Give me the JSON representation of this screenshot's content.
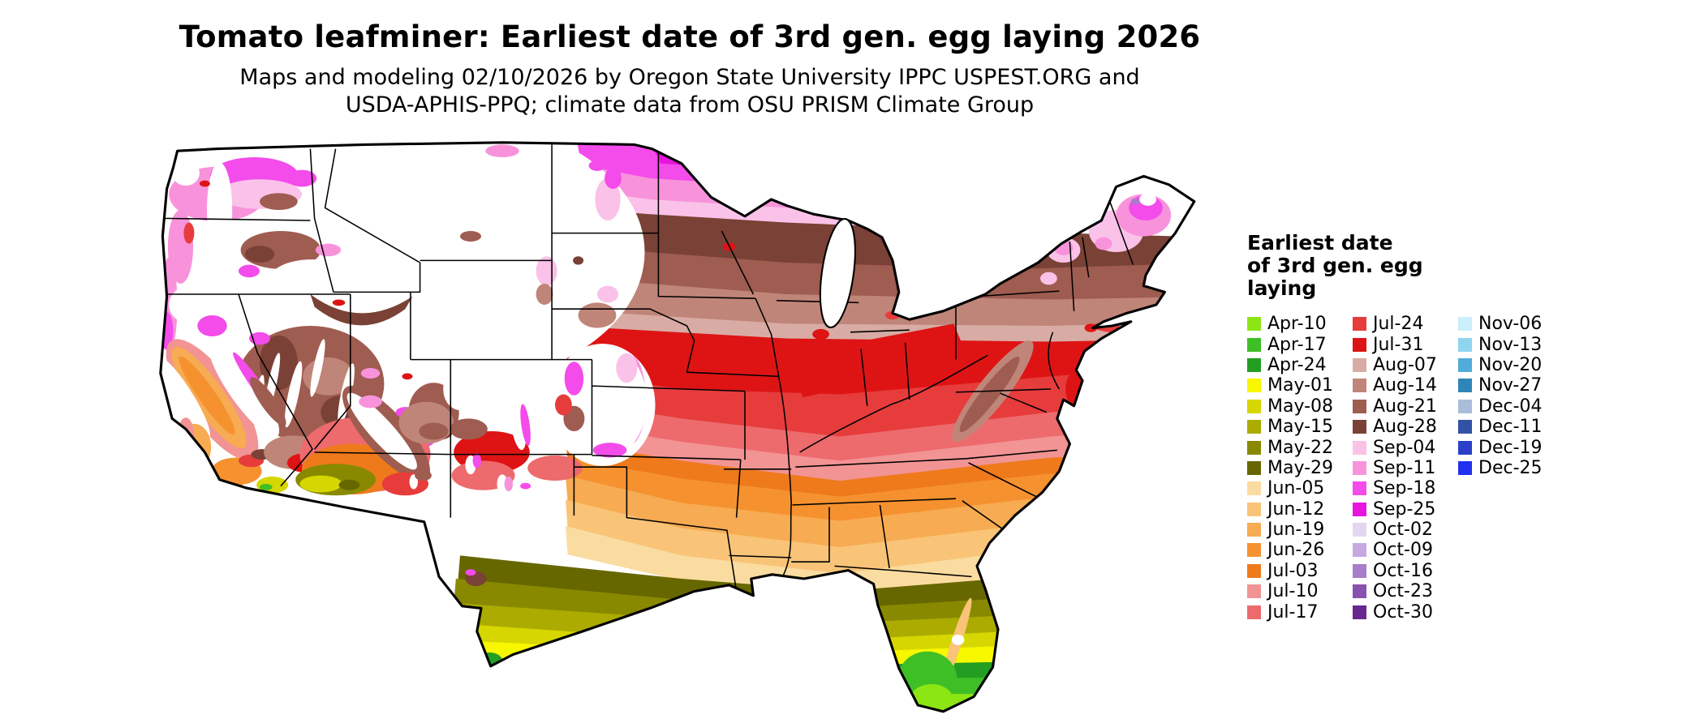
{
  "title": "Tomato leafminer: Earliest date of 3rd gen. egg laying 2026",
  "subtitle_line1": "Maps and modeling 02/10/2026 by Oregon State University IPPC USPEST.ORG and",
  "subtitle_line2": "USDA-APHIS-PPQ; climate data from OSU PRISM Climate Group",
  "legend": {
    "title_lines": [
      "Earliest date",
      "of 3rd gen. egg",
      "laying"
    ],
    "columns": [
      {
        "entries": [
          {
            "label": "Apr-10",
            "color": "#8CE614"
          },
          {
            "label": "Apr-17",
            "color": "#3FBF26"
          },
          {
            "label": "Apr-24",
            "color": "#239E23"
          },
          {
            "label": "May-01",
            "color": "#F7F700"
          },
          {
            "label": "May-08",
            "color": "#D6D600"
          },
          {
            "label": "May-15",
            "color": "#ABAB00"
          },
          {
            "label": "May-22",
            "color": "#898900"
          },
          {
            "label": "May-29",
            "color": "#676700"
          },
          {
            "label": "Jun-05",
            "color": "#FADCA0"
          },
          {
            "label": "Jun-12",
            "color": "#F9C478"
          },
          {
            "label": "Jun-19",
            "color": "#F7AB52"
          },
          {
            "label": "Jun-26",
            "color": "#F5922F"
          },
          {
            "label": "Jul-03",
            "color": "#EE7A1C"
          },
          {
            "label": "Jul-10",
            "color": "#F29394"
          },
          {
            "label": "Jul-17",
            "color": "#ED6A6D"
          }
        ]
      },
      {
        "entries": [
          {
            "label": "Jul-24",
            "color": "#E73C3C"
          },
          {
            "label": "Jul-31",
            "color": "#DE1414"
          },
          {
            "label": "Aug-07",
            "color": "#D8ACA4"
          },
          {
            "label": "Aug-14",
            "color": "#C08579"
          },
          {
            "label": "Aug-21",
            "color": "#9F5C50"
          },
          {
            "label": "Aug-28",
            "color": "#7A4136"
          },
          {
            "label": "Sep-04",
            "color": "#FAC2E8"
          },
          {
            "label": "Sep-11",
            "color": "#F893DB"
          },
          {
            "label": "Sep-18",
            "color": "#F44BEB"
          },
          {
            "label": "Sep-25",
            "color": "#E715DE"
          },
          {
            "label": "Oct-02",
            "color": "#E4D5F0"
          },
          {
            "label": "Oct-09",
            "color": "#C6A9E0"
          },
          {
            "label": "Oct-16",
            "color": "#A77CCB"
          },
          {
            "label": "Oct-23",
            "color": "#8852AE"
          },
          {
            "label": "Oct-30",
            "color": "#68288F"
          }
        ]
      },
      {
        "entries": [
          {
            "label": "Nov-06",
            "color": "#C9F0FB"
          },
          {
            "label": "Nov-13",
            "color": "#8ED5F0"
          },
          {
            "label": "Nov-20",
            "color": "#51ACDA"
          },
          {
            "label": "Nov-27",
            "color": "#2F85B8"
          },
          {
            "label": "Dec-04",
            "color": "#AABDDB"
          },
          {
            "label": "Dec-11",
            "color": "#3351A5"
          },
          {
            "label": "Dec-19",
            "color": "#2C3FC9"
          },
          {
            "label": "Dec-25",
            "color": "#2230F0"
          }
        ]
      }
    ]
  }
}
